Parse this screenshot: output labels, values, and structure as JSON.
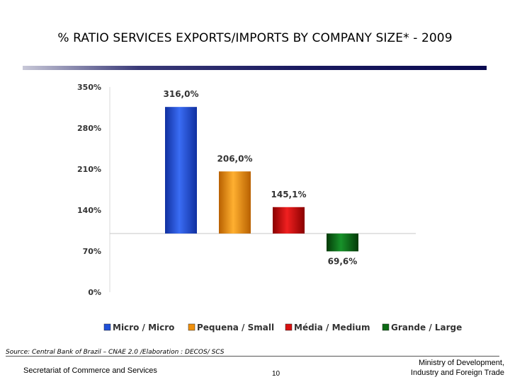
{
  "slide": {
    "title": "% RATIO SERVICES EXPORTS/IMPORTS BY COMPANY SIZE* - 2009",
    "source": "Source: Central Bank of Brazil – CNAE 2.0 /Elaboration : DECOS/ SCS",
    "footer_left": "Secretariat of Commerce and Services",
    "page_number": "10",
    "footer_right_line1": "Ministry of Development,",
    "footer_right_line2": "Industry and Foreign Trade"
  },
  "colors": {
    "micro": "#2050d8",
    "small": "#f0900c",
    "medium": "#d81010",
    "large": "#0c6a14"
  },
  "chart_data": {
    "type": "bar",
    "categories": [
      "Micro / Micro",
      "Pequena / Small",
      "Média / Medium",
      "Grande / Large"
    ],
    "values": [
      316.0,
      206.0,
      145.1,
      69.6
    ],
    "data_labels": [
      "316,0%",
      "206,0%",
      "145,1%",
      "69,6%"
    ],
    "baseline": 100,
    "ylim": [
      0,
      350
    ],
    "yticks": [
      0,
      70,
      140,
      210,
      280,
      350
    ],
    "ytick_labels": [
      "0%",
      "70%",
      "140%",
      "210%",
      "280%",
      "350%"
    ],
    "legend": [
      "Micro / Micro",
      "Pequena / Small",
      "Média / Medium",
      "Grande / Large"
    ],
    "legend_position": "bottom",
    "grid": false
  }
}
